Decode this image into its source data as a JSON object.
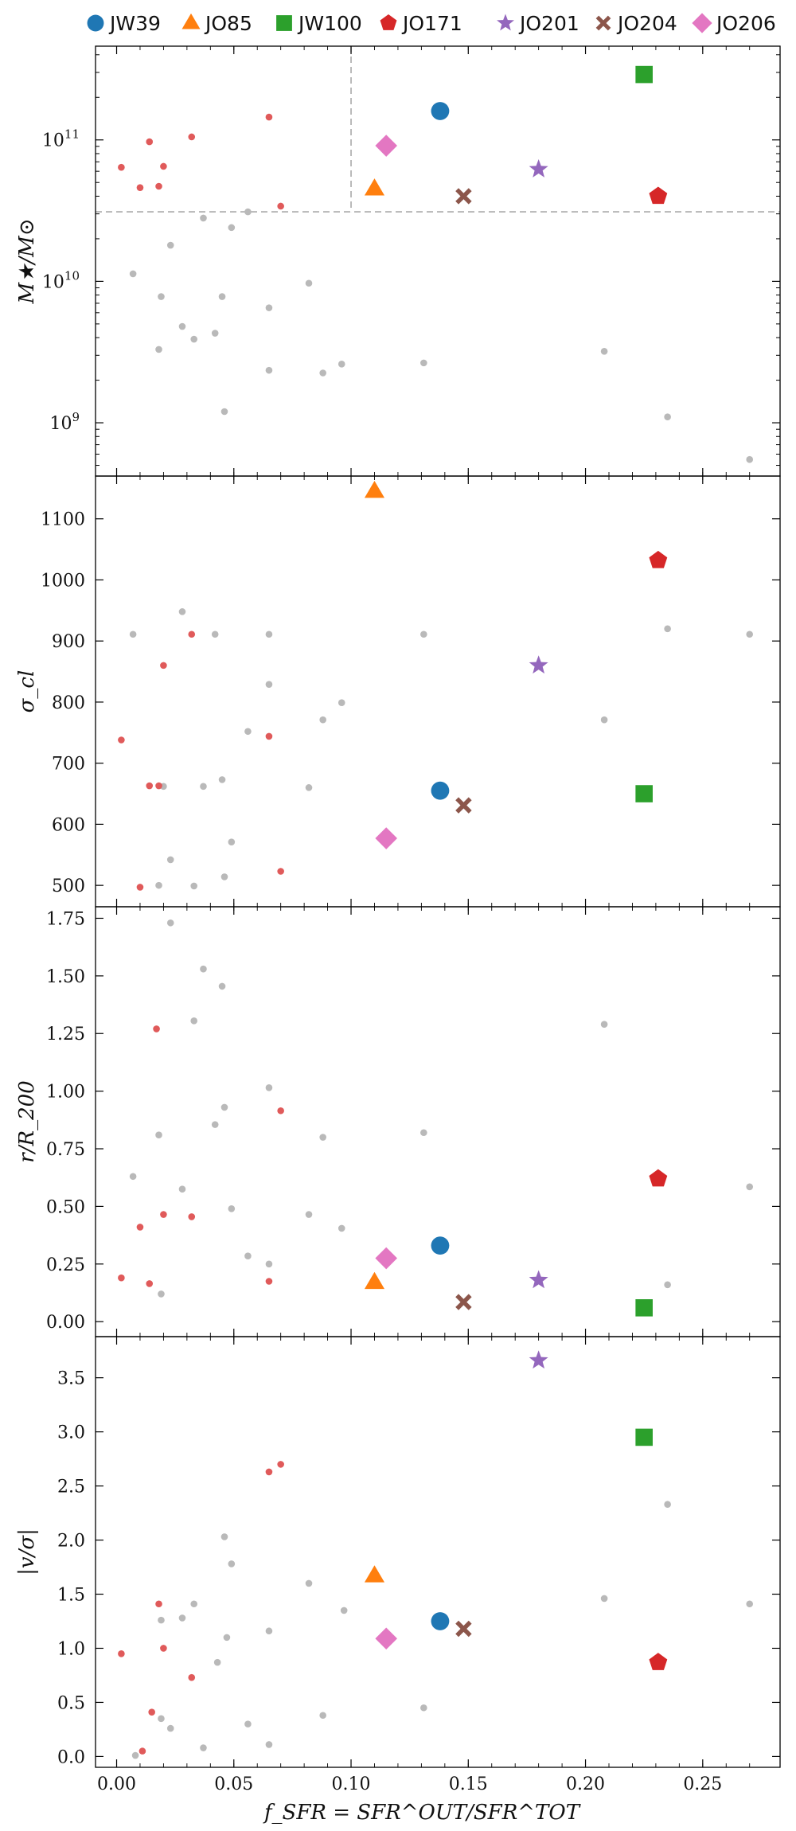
{
  "chart_data": {
    "type": "scatter",
    "xlabel": "f_SFR = SFR^OUT/SFR^TOT",
    "x_ticks": [
      "0.00",
      "0.05",
      "0.10",
      "0.15",
      "0.20",
      "0.25"
    ],
    "xlim": [
      -0.009,
      0.283
    ],
    "legend": {
      "placement": "top",
      "entries": [
        {
          "name": "JW39",
          "color": "#1f77b4",
          "marker": "circle"
        },
        {
          "name": "JO85",
          "color": "#ff7f0e",
          "marker": "triangle"
        },
        {
          "name": "JW100",
          "color": "#2ca02c",
          "marker": "square"
        },
        {
          "name": "JO171",
          "color": "#d62728",
          "marker": "pentagon"
        },
        {
          "name": "JO201",
          "color": "#9467bd",
          "marker": "star"
        },
        {
          "name": "JO204",
          "color": "#8c564b",
          "marker": "x"
        },
        {
          "name": "JO206",
          "color": "#e377c2",
          "marker": "diamond"
        }
      ]
    },
    "background_colors": {
      "gray": "#b9b9b9",
      "red": "#e05a5a"
    },
    "panels": [
      {
        "id": "mass",
        "ylabel": "M★/M⊙",
        "yscale": "log",
        "ylim": [
          420000000.0,
          460000000000.0
        ],
        "y_ticks": [
          {
            "value": 1000000000.0,
            "label": "10^9"
          },
          {
            "value": 10000000000.0,
            "label": "10^10"
          },
          {
            "value": 100000000000.0,
            "label": "10^11"
          }
        ],
        "reference_lines": {
          "vertical_x": 0.1,
          "horizontal_y": 31000000000.0
        },
        "highlight": [
          {
            "name": "JW39",
            "x": 0.138,
            "y": 160000000000.0
          },
          {
            "name": "JO85",
            "x": 0.11,
            "y": 45000000000.0
          },
          {
            "name": "JW100",
            "x": 0.225,
            "y": 290000000000.0
          },
          {
            "name": "JO171",
            "x": 0.231,
            "y": 40000000000.0
          },
          {
            "name": "JO201",
            "x": 0.18,
            "y": 62000000000.0
          },
          {
            "name": "JO204",
            "x": 0.148,
            "y": 40000000000.0
          },
          {
            "name": "JO206",
            "x": 0.115,
            "y": 91000000000.0
          }
        ],
        "others": [
          {
            "x": 0.007,
            "y": 11300000000.0,
            "c": "gray"
          },
          {
            "x": 0.018,
            "y": 3300000000.0,
            "c": "gray"
          },
          {
            "x": 0.019,
            "y": 7800000000.0,
            "c": "gray"
          },
          {
            "x": 0.023,
            "y": 18000000000.0,
            "c": "gray"
          },
          {
            "x": 0.028,
            "y": 4800000000.0,
            "c": "gray"
          },
          {
            "x": 0.033,
            "y": 3900000000.0,
            "c": "gray"
          },
          {
            "x": 0.037,
            "y": 28000000000.0,
            "c": "gray"
          },
          {
            "x": 0.042,
            "y": 4300000000.0,
            "c": "gray"
          },
          {
            "x": 0.045,
            "y": 7800000000.0,
            "c": "gray"
          },
          {
            "x": 0.046,
            "y": 1200000000.0,
            "c": "gray"
          },
          {
            "x": 0.049,
            "y": 24000000000.0,
            "c": "gray"
          },
          {
            "x": 0.056,
            "y": 31000000000.0,
            "c": "gray"
          },
          {
            "x": 0.065,
            "y": 2350000000.0,
            "c": "gray"
          },
          {
            "x": 0.065,
            "y": 6500000000.0,
            "c": "gray"
          },
          {
            "x": 0.082,
            "y": 9700000000.0,
            "c": "gray"
          },
          {
            "x": 0.088,
            "y": 2250000000.0,
            "c": "gray"
          },
          {
            "x": 0.096,
            "y": 2600000000.0,
            "c": "gray"
          },
          {
            "x": 0.131,
            "y": 2650000000.0,
            "c": "gray"
          },
          {
            "x": 0.208,
            "y": 3200000000.0,
            "c": "gray"
          },
          {
            "x": 0.235,
            "y": 1100000000.0,
            "c": "gray"
          },
          {
            "x": 0.27,
            "y": 550000000.0,
            "c": "gray"
          },
          {
            "x": 0.002,
            "y": 64000000000.0,
            "c": "red"
          },
          {
            "x": 0.01,
            "y": 46000000000.0,
            "c": "red"
          },
          {
            "x": 0.014,
            "y": 97000000000.0,
            "c": "red"
          },
          {
            "x": 0.018,
            "y": 47000000000.0,
            "c": "red"
          },
          {
            "x": 0.02,
            "y": 65000000000.0,
            "c": "red"
          },
          {
            "x": 0.032,
            "y": 105000000000.0,
            "c": "red"
          },
          {
            "x": 0.065,
            "y": 145000000000.0,
            "c": "red"
          },
          {
            "x": 0.07,
            "y": 34000000000.0,
            "c": "red"
          }
        ]
      },
      {
        "id": "sigma",
        "ylabel": "σ_cl",
        "yscale": "linear",
        "ylim": [
          465,
          1170
        ],
        "y_ticks": [
          {
            "value": 500,
            "label": "500"
          },
          {
            "value": 600,
            "label": "600"
          },
          {
            "value": 700,
            "label": "700"
          },
          {
            "value": 800,
            "label": "800"
          },
          {
            "value": 900,
            "label": "900"
          },
          {
            "value": 1000,
            "label": "1000"
          },
          {
            "value": 1100,
            "label": "1100"
          }
        ],
        "highlight": [
          {
            "name": "JW39",
            "x": 0.138,
            "y": 655
          },
          {
            "name": "JO85",
            "x": 0.11,
            "y": 1145
          },
          {
            "name": "JW100",
            "x": 0.225,
            "y": 650
          },
          {
            "name": "JO171",
            "x": 0.231,
            "y": 1032
          },
          {
            "name": "JO201",
            "x": 0.18,
            "y": 860
          },
          {
            "name": "JO204",
            "x": 0.148,
            "y": 631
          },
          {
            "name": "JO206",
            "x": 0.115,
            "y": 577
          }
        ],
        "others": [
          {
            "x": 0.007,
            "y": 911,
            "c": "gray"
          },
          {
            "x": 0.018,
            "y": 500,
            "c": "gray"
          },
          {
            "x": 0.02,
            "y": 662,
            "c": "gray"
          },
          {
            "x": 0.023,
            "y": 542,
            "c": "gray"
          },
          {
            "x": 0.028,
            "y": 948,
            "c": "gray"
          },
          {
            "x": 0.033,
            "y": 499,
            "c": "gray"
          },
          {
            "x": 0.037,
            "y": 662,
            "c": "gray"
          },
          {
            "x": 0.042,
            "y": 911,
            "c": "gray"
          },
          {
            "x": 0.045,
            "y": 673,
            "c": "gray"
          },
          {
            "x": 0.046,
            "y": 514,
            "c": "gray"
          },
          {
            "x": 0.049,
            "y": 571,
            "c": "gray"
          },
          {
            "x": 0.056,
            "y": 752,
            "c": "gray"
          },
          {
            "x": 0.065,
            "y": 911,
            "c": "gray"
          },
          {
            "x": 0.065,
            "y": 829,
            "c": "gray"
          },
          {
            "x": 0.082,
            "y": 660,
            "c": "gray"
          },
          {
            "x": 0.088,
            "y": 771,
            "c": "gray"
          },
          {
            "x": 0.096,
            "y": 799,
            "c": "gray"
          },
          {
            "x": 0.131,
            "y": 911,
            "c": "gray"
          },
          {
            "x": 0.208,
            "y": 771,
            "c": "gray"
          },
          {
            "x": 0.235,
            "y": 920,
            "c": "gray"
          },
          {
            "x": 0.27,
            "y": 911,
            "c": "gray"
          },
          {
            "x": 0.002,
            "y": 738,
            "c": "red"
          },
          {
            "x": 0.01,
            "y": 497,
            "c": "red"
          },
          {
            "x": 0.014,
            "y": 663,
            "c": "red"
          },
          {
            "x": 0.018,
            "y": 663,
            "c": "red"
          },
          {
            "x": 0.02,
            "y": 860,
            "c": "red"
          },
          {
            "x": 0.032,
            "y": 911,
            "c": "red"
          },
          {
            "x": 0.065,
            "y": 744,
            "c": "red"
          },
          {
            "x": 0.07,
            "y": 523,
            "c": "red"
          }
        ]
      },
      {
        "id": "radius",
        "ylabel": "r/R_200",
        "yscale": "linear",
        "ylim": [
          -0.065,
          1.8
        ],
        "y_ticks": [
          {
            "value": 0,
            "label": "0.00"
          },
          {
            "value": 0.25,
            "label": "0.25"
          },
          {
            "value": 0.5,
            "label": "0.50"
          },
          {
            "value": 0.75,
            "label": "0.75"
          },
          {
            "value": 1.0,
            "label": "1.00"
          },
          {
            "value": 1.25,
            "label": "1.25"
          },
          {
            "value": 1.5,
            "label": "1.50"
          },
          {
            "value": 1.75,
            "label": "1.75"
          }
        ],
        "highlight": [
          {
            "name": "JW39",
            "x": 0.138,
            "y": 0.33
          },
          {
            "name": "JO85",
            "x": 0.11,
            "y": 0.17
          },
          {
            "name": "JW100",
            "x": 0.225,
            "y": 0.06
          },
          {
            "name": "JO171",
            "x": 0.231,
            "y": 0.62
          },
          {
            "name": "JO201",
            "x": 0.18,
            "y": 0.18
          },
          {
            "name": "JO204",
            "x": 0.148,
            "y": 0.085
          },
          {
            "name": "JO206",
            "x": 0.115,
            "y": 0.275
          }
        ],
        "others": [
          {
            "x": 0.007,
            "y": 0.63,
            "c": "gray"
          },
          {
            "x": 0.018,
            "y": 0.81,
            "c": "gray"
          },
          {
            "x": 0.019,
            "y": 0.12,
            "c": "gray"
          },
          {
            "x": 0.023,
            "y": 1.73,
            "c": "gray"
          },
          {
            "x": 0.028,
            "y": 0.575,
            "c": "gray"
          },
          {
            "x": 0.033,
            "y": 1.305,
            "c": "gray"
          },
          {
            "x": 0.037,
            "y": 1.53,
            "c": "gray"
          },
          {
            "x": 0.042,
            "y": 0.855,
            "c": "gray"
          },
          {
            "x": 0.045,
            "y": 1.455,
            "c": "gray"
          },
          {
            "x": 0.046,
            "y": 0.93,
            "c": "gray"
          },
          {
            "x": 0.049,
            "y": 0.49,
            "c": "gray"
          },
          {
            "x": 0.056,
            "y": 0.285,
            "c": "gray"
          },
          {
            "x": 0.065,
            "y": 1.015,
            "c": "gray"
          },
          {
            "x": 0.065,
            "y": 0.25,
            "c": "gray"
          },
          {
            "x": 0.082,
            "y": 0.465,
            "c": "gray"
          },
          {
            "x": 0.088,
            "y": 0.8,
            "c": "gray"
          },
          {
            "x": 0.096,
            "y": 0.405,
            "c": "gray"
          },
          {
            "x": 0.131,
            "y": 0.82,
            "c": "gray"
          },
          {
            "x": 0.208,
            "y": 1.29,
            "c": "gray"
          },
          {
            "x": 0.235,
            "y": 0.16,
            "c": "gray"
          },
          {
            "x": 0.27,
            "y": 0.585,
            "c": "gray"
          },
          {
            "x": 0.002,
            "y": 0.19,
            "c": "red"
          },
          {
            "x": 0.01,
            "y": 0.41,
            "c": "red"
          },
          {
            "x": 0.014,
            "y": 0.165,
            "c": "red"
          },
          {
            "x": 0.017,
            "y": 1.27,
            "c": "red"
          },
          {
            "x": 0.02,
            "y": 0.465,
            "c": "red"
          },
          {
            "x": 0.032,
            "y": 0.455,
            "c": "red"
          },
          {
            "x": 0.065,
            "y": 0.175,
            "c": "red"
          },
          {
            "x": 0.07,
            "y": 0.915,
            "c": "red"
          }
        ]
      },
      {
        "id": "vsigma",
        "ylabel": "|v/σ|",
        "yscale": "linear",
        "ylim": [
          -0.1,
          3.88
        ],
        "y_ticks": [
          {
            "value": 0,
            "label": "0.0"
          },
          {
            "value": 0.5,
            "label": "0.5"
          },
          {
            "value": 1.0,
            "label": "1.0"
          },
          {
            "value": 1.5,
            "label": "1.5"
          },
          {
            "value": 2.0,
            "label": "2.0"
          },
          {
            "value": 2.5,
            "label": "2.5"
          },
          {
            "value": 3.0,
            "label": "3.0"
          },
          {
            "value": 3.5,
            "label": "3.5"
          }
        ],
        "highlight": [
          {
            "name": "JW39",
            "x": 0.138,
            "y": 1.25
          },
          {
            "name": "JO85",
            "x": 0.11,
            "y": 1.67
          },
          {
            "name": "JW100",
            "x": 0.225,
            "y": 2.95
          },
          {
            "name": "JO171",
            "x": 0.231,
            "y": 0.87
          },
          {
            "name": "JO201",
            "x": 0.18,
            "y": 3.66
          },
          {
            "name": "JO204",
            "x": 0.148,
            "y": 1.18
          },
          {
            "name": "JO206",
            "x": 0.115,
            "y": 1.09
          }
        ],
        "others": [
          {
            "x": 0.008,
            "y": 0.01,
            "c": "gray"
          },
          {
            "x": 0.019,
            "y": 1.26,
            "c": "gray"
          },
          {
            "x": 0.019,
            "y": 0.35,
            "c": "gray"
          },
          {
            "x": 0.023,
            "y": 0.26,
            "c": "gray"
          },
          {
            "x": 0.028,
            "y": 1.28,
            "c": "gray"
          },
          {
            "x": 0.033,
            "y": 1.41,
            "c": "gray"
          },
          {
            "x": 0.037,
            "y": 0.08,
            "c": "gray"
          },
          {
            "x": 0.043,
            "y": 0.87,
            "c": "gray"
          },
          {
            "x": 0.046,
            "y": 2.03,
            "c": "gray"
          },
          {
            "x": 0.047,
            "y": 1.1,
            "c": "gray"
          },
          {
            "x": 0.049,
            "y": 1.78,
            "c": "gray"
          },
          {
            "x": 0.056,
            "y": 0.3,
            "c": "gray"
          },
          {
            "x": 0.065,
            "y": 1.16,
            "c": "gray"
          },
          {
            "x": 0.065,
            "y": 0.11,
            "c": "gray"
          },
          {
            "x": 0.082,
            "y": 1.6,
            "c": "gray"
          },
          {
            "x": 0.088,
            "y": 0.38,
            "c": "gray"
          },
          {
            "x": 0.097,
            "y": 1.35,
            "c": "gray"
          },
          {
            "x": 0.131,
            "y": 0.45,
            "c": "gray"
          },
          {
            "x": 0.208,
            "y": 1.46,
            "c": "gray"
          },
          {
            "x": 0.235,
            "y": 2.33,
            "c": "gray"
          },
          {
            "x": 0.27,
            "y": 1.41,
            "c": "gray"
          },
          {
            "x": 0.002,
            "y": 0.95,
            "c": "red"
          },
          {
            "x": 0.011,
            "y": 0.05,
            "c": "red"
          },
          {
            "x": 0.015,
            "y": 0.41,
            "c": "red"
          },
          {
            "x": 0.018,
            "y": 1.41,
            "c": "red"
          },
          {
            "x": 0.02,
            "y": 1.0,
            "c": "red"
          },
          {
            "x": 0.032,
            "y": 0.73,
            "c": "red"
          },
          {
            "x": 0.065,
            "y": 2.63,
            "c": "red"
          },
          {
            "x": 0.07,
            "y": 2.7,
            "c": "red"
          }
        ]
      }
    ]
  }
}
